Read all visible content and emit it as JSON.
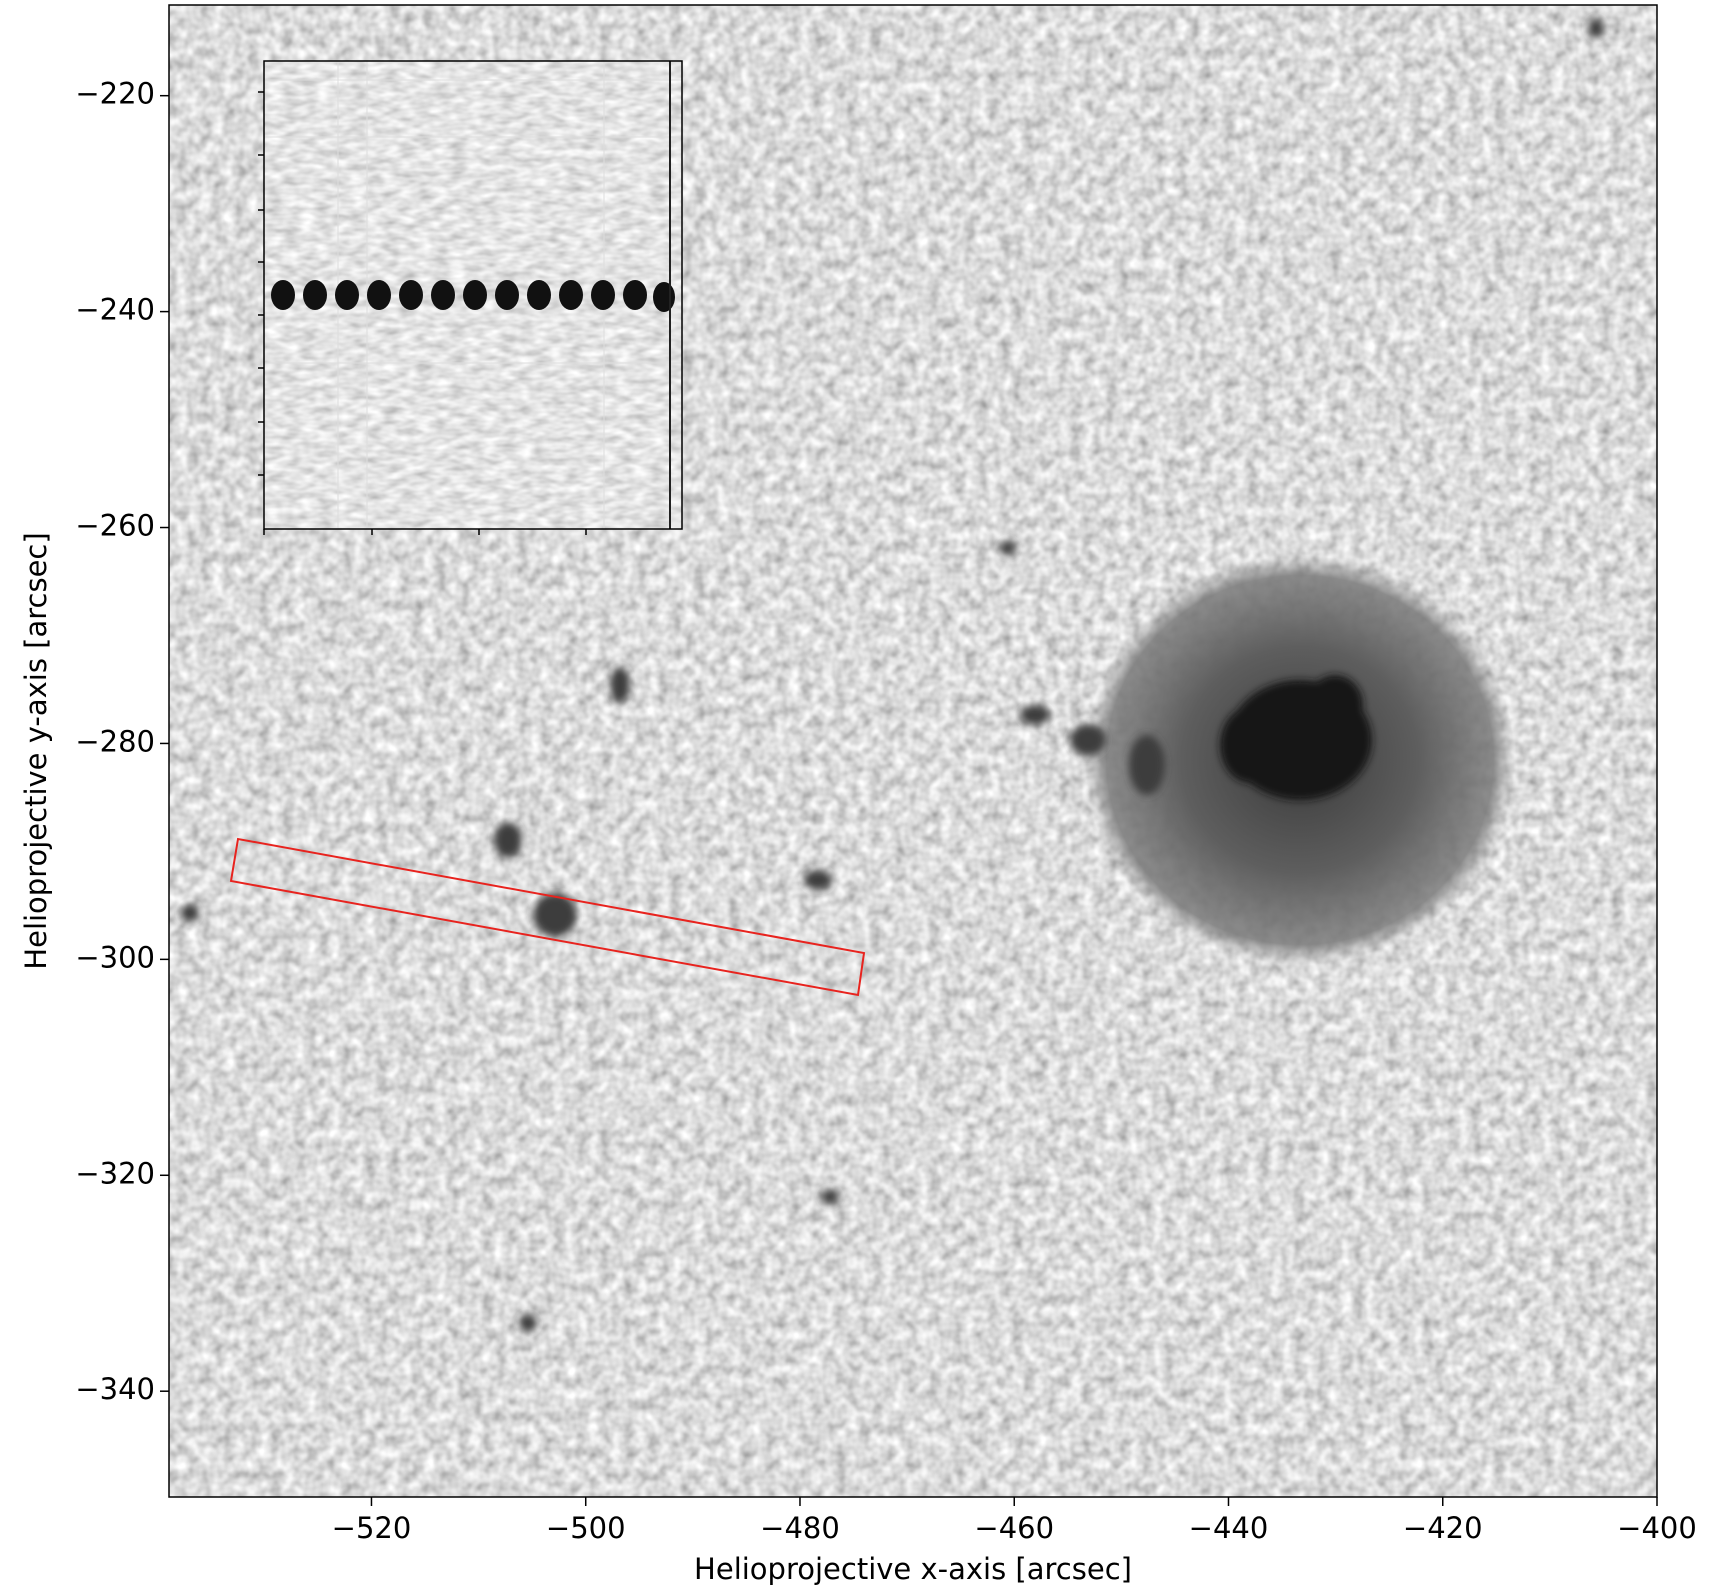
{
  "chart_data": {
    "type": "image",
    "xlabel": "Helioprojective x-axis [arcsec]",
    "ylabel": "Helioprojective y-axis [arcsec]",
    "xlim": [
      -538.9,
      -400
    ],
    "ylim": [
      -349.8,
      -211.6
    ],
    "xticks": [
      {
        "value": -520,
        "label": "−520"
      },
      {
        "value": -500,
        "label": "−500"
      },
      {
        "value": -480,
        "label": "−480"
      },
      {
        "value": -460,
        "label": "−460"
      },
      {
        "value": -440,
        "label": "−440"
      },
      {
        "value": -420,
        "label": "−420"
      },
      {
        "value": -400,
        "label": "−400"
      }
    ],
    "yticks": [
      {
        "value": -220,
        "label": "−220"
      },
      {
        "value": -240,
        "label": "−240"
      },
      {
        "value": -260,
        "label": "−260"
      },
      {
        "value": -280,
        "label": "−280"
      },
      {
        "value": -300,
        "label": "−300"
      },
      {
        "value": -320,
        "label": "−320"
      },
      {
        "value": -340,
        "label": "−340"
      }
    ],
    "colormap": "gray"
  }
}
